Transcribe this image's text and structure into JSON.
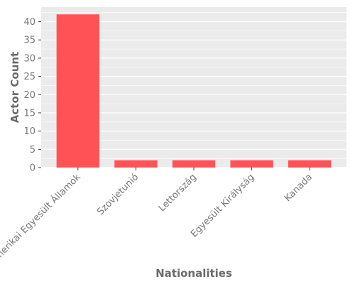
{
  "chart_data": {
    "type": "bar",
    "title": "",
    "xlabel": "Nationalities",
    "ylabel": "Actor Count",
    "categories": [
      "Amerikai Egyesült Államok",
      "Szovjetunió",
      "Lettország",
      "Egyesült Királyság",
      "Kanada"
    ],
    "values": [
      42,
      2,
      2,
      2,
      2
    ],
    "ylim": [
      0,
      44
    ],
    "yticks": [
      0,
      5,
      10,
      15,
      20,
      25,
      30,
      35,
      40
    ],
    "grid": true,
    "legend": "none",
    "colors": {
      "bar": "#ff5257",
      "panel": "#ebebeb",
      "grid": "#ffffff",
      "text": "#777777"
    }
  }
}
